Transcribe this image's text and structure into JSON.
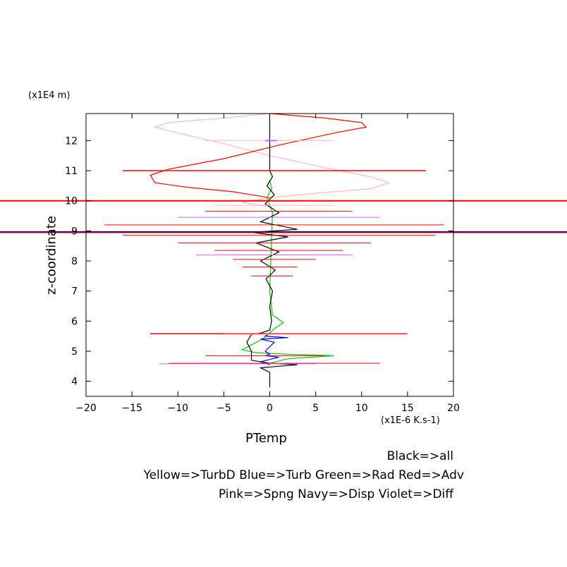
{
  "chart_data": {
    "type": "line",
    "x_axis": {
      "label": "PTemp",
      "unit_label": "(x1E-6 K.s-1)",
      "range": [
        -20,
        20
      ],
      "ticks": [
        -20,
        -15,
        -10,
        -5,
        0,
        5,
        10,
        15,
        20
      ]
    },
    "y_axis": {
      "label": "z-coordinate",
      "unit_label": "(x1E4 m)",
      "range": [
        3.5,
        12.9
      ],
      "ticks": [
        4,
        5,
        6,
        7,
        8,
        9,
        10,
        11,
        12
      ]
    },
    "legend": {
      "line1": "Black=>all",
      "line2": "Yellow=>TurbD Blue=>Turb Green=>Rad Red=>Adv",
      "line3": "Pink=>Spng Navy=>Disp Violet=>Diff"
    },
    "colors": {
      "all": "#000000",
      "TurbD": "#ffff00",
      "Turb": "#0000ff",
      "Rad": "#00cc00",
      "Adv": "#ff0000",
      "Spng": "#ffb6c1",
      "Disp": "#000080",
      "Diff": "#cc66ff"
    },
    "series": [
      {
        "key": "Spng",
        "color": "#ffb6c1",
        "points": [
          [
            0,
            12.9
          ],
          [
            -5,
            12.75
          ],
          [
            -11,
            12.6
          ],
          [
            -12.5,
            12.45
          ],
          [
            -10,
            12.25
          ],
          [
            -5,
            11.9
          ],
          [
            0,
            11.5
          ],
          [
            6,
            11.1
          ],
          [
            11,
            10.8
          ],
          [
            13,
            10.6
          ],
          [
            11,
            10.4
          ],
          [
            5,
            10.25
          ],
          [
            0,
            10.1
          ],
          [
            -3,
            9.95
          ],
          [
            0,
            9.8
          ]
        ]
      },
      {
        "key": "Adv",
        "color": "#ff0000",
        "points": [
          [
            0,
            12.9
          ],
          [
            6,
            12.75
          ],
          [
            10,
            12.6
          ],
          [
            10.5,
            12.45
          ],
          [
            7,
            12.25
          ],
          [
            1,
            11.85
          ],
          [
            -5,
            11.4
          ],
          [
            -11,
            11.05
          ],
          [
            -13,
            10.85
          ],
          [
            -12.5,
            10.6
          ],
          [
            -9,
            10.45
          ],
          [
            -4,
            10.3
          ],
          [
            0,
            10.1
          ]
        ]
      },
      {
        "key": "Rad",
        "color": "#00cc00",
        "points": [
          [
            0,
            10.7
          ],
          [
            0.2,
            10.4
          ],
          [
            -0.3,
            10.1
          ],
          [
            0.3,
            9.6
          ],
          [
            0,
            7.0
          ],
          [
            0.3,
            6.2
          ],
          [
            1.5,
            5.95
          ],
          [
            0.5,
            5.75
          ],
          [
            0,
            5.6
          ],
          [
            -0.8,
            5.4
          ],
          [
            -3,
            5.05
          ],
          [
            -1.5,
            4.95
          ],
          [
            2,
            4.9
          ],
          [
            7,
            4.85
          ],
          [
            2,
            4.75
          ],
          [
            0,
            4.6
          ]
        ]
      },
      {
        "key": "Turb",
        "color": "#0000ff",
        "points": [
          [
            0,
            5.6
          ],
          [
            -0.5,
            5.5
          ],
          [
            2,
            5.45
          ],
          [
            -1,
            5.4
          ],
          [
            0.5,
            5.3
          ],
          [
            -0.5,
            5.0
          ],
          [
            0,
            4.9
          ],
          [
            -0.5,
            4.85
          ],
          [
            1,
            4.8
          ],
          [
            -1,
            4.65
          ],
          [
            0,
            4.55
          ]
        ]
      },
      {
        "key": "all",
        "color": "#000000",
        "points": [
          [
            0,
            12.9
          ],
          [
            0,
            11.0
          ],
          [
            0.3,
            10.8
          ],
          [
            -0.3,
            10.5
          ],
          [
            0.5,
            10.2
          ],
          [
            -0.5,
            9.9
          ],
          [
            1,
            9.6
          ],
          [
            -1,
            9.3
          ],
          [
            3,
            9.05
          ],
          [
            -2,
            8.95
          ],
          [
            2,
            8.8
          ],
          [
            -1.5,
            8.6
          ],
          [
            1,
            8.3
          ],
          [
            -1,
            8.0
          ],
          [
            0.6,
            7.7
          ],
          [
            -0.4,
            7.4
          ],
          [
            0.3,
            7.0
          ],
          [
            0,
            6.5
          ],
          [
            0.2,
            6.0
          ],
          [
            0,
            5.7
          ],
          [
            -1,
            5.6
          ],
          [
            -2,
            5.55
          ],
          [
            -2.5,
            5.3
          ],
          [
            -2,
            5.0
          ],
          [
            -2,
            4.7
          ],
          [
            0,
            4.6
          ],
          [
            3,
            4.55
          ],
          [
            -1,
            4.45
          ],
          [
            0,
            4.3
          ],
          [
            0,
            3.8
          ]
        ]
      }
    ],
    "spikes": [
      {
        "key": "Adv",
        "color": "#ff0000",
        "z": 10.0,
        "x1": -20,
        "x2": 20,
        "width": 2
      },
      {
        "key": "Adv",
        "color": "#ff0000",
        "z": 8.95,
        "x1": -20,
        "x2": 20,
        "width": 2
      },
      {
        "key": "Disp",
        "color": "#000080",
        "z": 8.97,
        "x1": -20,
        "x2": 20,
        "width": 1.5
      },
      {
        "key": "Adv",
        "color": "#ff0000",
        "z": 11.0,
        "x1": -16,
        "x2": 17,
        "width": 1.5
      },
      {
        "key": "Adv",
        "color": "#ff0000",
        "z": 9.2,
        "x1": -18,
        "x2": 19,
        "width": 1
      },
      {
        "key": "Diff",
        "color": "#cc66ff",
        "z": 9.45,
        "x1": -10,
        "x2": 12,
        "width": 1
      },
      {
        "key": "Adv",
        "color": "#ff0000",
        "z": 9.65,
        "x1": -7,
        "x2": 9,
        "width": 1
      },
      {
        "key": "Spng",
        "color": "#ffb6c1",
        "z": 9.85,
        "x1": -6,
        "x2": 7,
        "width": 1
      },
      {
        "key": "Adv",
        "color": "#ff0000",
        "z": 8.85,
        "x1": -16,
        "x2": 18,
        "width": 1
      },
      {
        "key": "Adv",
        "color": "#ff0000",
        "z": 8.6,
        "x1": -10,
        "x2": 11,
        "width": 1
      },
      {
        "key": "Adv",
        "color": "#ff0000",
        "z": 8.35,
        "x1": -6,
        "x2": 8,
        "width": 1
      },
      {
        "key": "Diff",
        "color": "#cc66ff",
        "z": 8.2,
        "x1": -8,
        "x2": 9,
        "width": 1
      },
      {
        "key": "Adv",
        "color": "#ff0000",
        "z": 8.05,
        "x1": -4,
        "x2": 5,
        "width": 1
      },
      {
        "key": "Adv",
        "color": "#ff0000",
        "z": 7.8,
        "x1": -3,
        "x2": 3,
        "width": 1
      },
      {
        "key": "Adv",
        "color": "#ff0000",
        "z": 7.5,
        "x1": -2,
        "x2": 2.5,
        "width": 1
      },
      {
        "key": "Adv",
        "color": "#ff0000",
        "z": 5.58,
        "x1": -13,
        "x2": 15,
        "width": 1.5
      },
      {
        "key": "Spng",
        "color": "#ffb6c1",
        "z": 5.56,
        "x1": -5,
        "x2": 15,
        "width": 1
      },
      {
        "key": "Adv",
        "color": "#ff0000",
        "z": 4.85,
        "x1": -7,
        "x2": 6,
        "width": 1
      },
      {
        "key": "Adv",
        "color": "#ff0000",
        "z": 4.6,
        "x1": -11,
        "x2": 12,
        "width": 1
      },
      {
        "key": "Diff",
        "color": "#cc66ff",
        "z": 4.58,
        "x1": -12,
        "x2": 5,
        "width": 1
      },
      {
        "key": "Spng",
        "color": "#ffb6c1",
        "z": 12.0,
        "x1": -7,
        "x2": 7,
        "width": 1
      },
      {
        "key": "Diff",
        "color": "#cc66ff",
        "z": 12.0,
        "x1": -0.5,
        "x2": 0.8,
        "width": 2
      }
    ]
  }
}
